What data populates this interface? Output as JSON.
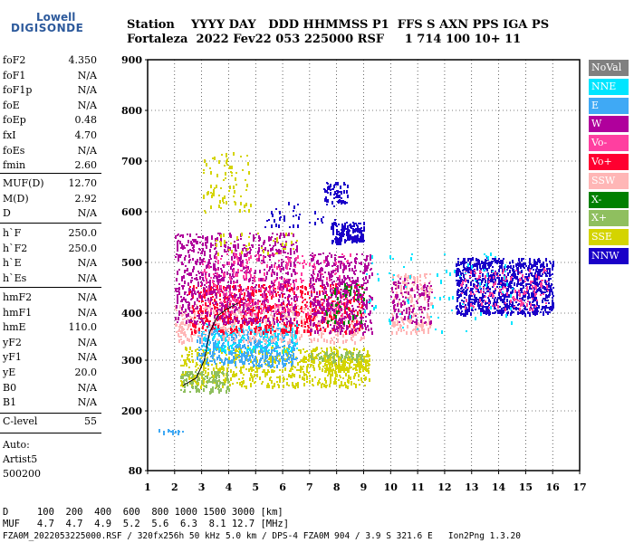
{
  "logo": {
    "top": "Lowell",
    "main": "DIGISONDE"
  },
  "header": {
    "labels": "Station    YYYY DAY   DDD HHMMSS P1  FFS S AXN PPS IGA PS",
    "values": "Fortaleza  2022 Fev22 053 225000 RSF     1 714 100 10+ 11"
  },
  "params_group1": [
    {
      "name": "foF2",
      "value": "4.350"
    },
    {
      "name": "foF1",
      "value": "N/A"
    },
    {
      "name": "foF1p",
      "value": "N/A"
    },
    {
      "name": "foE",
      "value": "N/A"
    },
    {
      "name": "foEp",
      "value": "0.48"
    },
    {
      "name": "fxI",
      "value": "4.70"
    },
    {
      "name": "foEs",
      "value": "N/A"
    },
    {
      "name": "fmin",
      "value": "2.60"
    }
  ],
  "params_group2": [
    {
      "name": "MUF(D)",
      "value": "12.70"
    },
    {
      "name": "M(D)",
      "value": "2.92"
    },
    {
      "name": "D",
      "value": "N/A"
    }
  ],
  "params_group3": [
    {
      "name": "h`F",
      "value": "250.0"
    },
    {
      "name": "h`F2",
      "value": "250.0"
    },
    {
      "name": "h`E",
      "value": "N/A"
    },
    {
      "name": "h`Es",
      "value": "N/A"
    }
  ],
  "params_group4": [
    {
      "name": "hmF2",
      "value": "N/A"
    },
    {
      "name": "hmF1",
      "value": "N/A"
    },
    {
      "name": "hmE",
      "value": "110.0"
    },
    {
      "name": "yF2",
      "value": "N/A"
    },
    {
      "name": "yF1",
      "value": "N/A"
    },
    {
      "name": "yE",
      "value": "20.0"
    },
    {
      "name": "B0",
      "value": "N/A"
    },
    {
      "name": "B1",
      "value": "N/A"
    }
  ],
  "clevel": {
    "name": "C-level",
    "value": "55"
  },
  "auto": [
    "Auto:",
    "Artist5",
    "500200"
  ],
  "footer": {
    "d_row": "D     100  200  400  600  800 1000 1500 3000 [km]",
    "muf_row": "MUF   4.7  4.7  4.9  5.2  5.6  6.3  8.1 12.7 [MHz]",
    "file_row": "FZA0M_2022053225000.RSF / 320fx256h 50 kHz 5.0 km / DPS-4 FZA0M 904 / 3.9 S 321.6 E   Ion2Png 1.3.20"
  },
  "legend": [
    {
      "label": "NoVal",
      "color": "#808080"
    },
    {
      "label": "NNE",
      "color": "#00e5ff"
    },
    {
      "label": "E",
      "color": "#3fa9f5"
    },
    {
      "label": "W",
      "color": "#b0009c"
    },
    {
      "label": "Vo-",
      "color": "#ff3fa0"
    },
    {
      "label": "Vo+",
      "color": "#ff0030"
    },
    {
      "label": "SSW",
      "color": "#ffb6b6"
    },
    {
      "label": "X-",
      "color": "#008000"
    },
    {
      "label": "X+",
      "color": "#8fbf5f"
    },
    {
      "label": "SSE",
      "color": "#d4d400"
    },
    {
      "label": "NNW",
      "color": "#1a00c8"
    }
  ],
  "chart_data": {
    "type": "scatter",
    "title": "",
    "xlabel": "",
    "ylabel": "",
    "xlim": [
      1,
      17
    ],
    "ylim": [
      80,
      900
    ],
    "x_ticks": [
      "1",
      "2",
      "3",
      "4",
      "5",
      "6",
      "7",
      "8",
      "9",
      "10",
      "11",
      "12",
      "13",
      "14",
      "15",
      "16",
      "17"
    ],
    "y_ticks": [
      "80",
      "200",
      "300",
      "400",
      "500",
      "600",
      "700",
      "800",
      "900"
    ],
    "grid": true,
    "clusters": [
      {
        "series": "SSE",
        "x_range": [
          2.2,
          9.2
        ],
        "y_range": [
          250,
          330
        ],
        "count": 700
      },
      {
        "series": "X+",
        "x_range": [
          2.2,
          4.0
        ],
        "y_range": [
          240,
          280
        ],
        "count": 120
      },
      {
        "series": "E",
        "x_range": [
          2.8,
          6.5
        ],
        "y_range": [
          290,
          370
        ],
        "count": 450
      },
      {
        "series": "NNE",
        "x_range": [
          3.0,
          6.5
        ],
        "y_range": [
          320,
          380
        ],
        "count": 150
      },
      {
        "series": "SSW",
        "x_range": [
          2.0,
          9.0
        ],
        "y_range": [
          340,
          420
        ],
        "count": 500
      },
      {
        "series": "Vo+",
        "x_range": [
          2.5,
          9.0
        ],
        "y_range": [
          360,
          460
        ],
        "count": 600
      },
      {
        "series": "W",
        "x_range": [
          2.0,
          6.5
        ],
        "y_range": [
          380,
          560
        ],
        "count": 800
      },
      {
        "series": "Vo-",
        "x_range": [
          3.0,
          8.5
        ],
        "y_range": [
          400,
          520
        ],
        "count": 300
      },
      {
        "series": "W",
        "x_range": [
          7.0,
          9.3
        ],
        "y_range": [
          360,
          520
        ],
        "count": 450
      },
      {
        "series": "NNW",
        "x_range": [
          12.4,
          16.0
        ],
        "y_range": [
          400,
          510
        ],
        "count": 900
      },
      {
        "series": "Vo-",
        "x_range": [
          12.5,
          15.8
        ],
        "y_range": [
          410,
          490
        ],
        "count": 150
      },
      {
        "series": "NNW",
        "x_range": [
          7.8,
          9.0
        ],
        "y_range": [
          540,
          580
        ],
        "count": 150
      },
      {
        "series": "NNW",
        "x_range": [
          7.5,
          8.4
        ],
        "y_range": [
          620,
          660
        ],
        "count": 60
      },
      {
        "series": "NNW",
        "x_range": [
          5.3,
          8.0
        ],
        "y_range": [
          570,
          620
        ],
        "count": 40
      },
      {
        "series": "SSE",
        "x_range": [
          3.0,
          4.8
        ],
        "y_range": [
          600,
          720
        ],
        "count": 80
      },
      {
        "series": "SSW",
        "x_range": [
          10.0,
          11.5
        ],
        "y_range": [
          360,
          480
        ],
        "count": 200
      },
      {
        "series": "W",
        "x_range": [
          10.0,
          11.5
        ],
        "y_range": [
          380,
          470
        ],
        "count": 120
      },
      {
        "series": "SSE",
        "x_range": [
          7.5,
          9.2
        ],
        "y_range": [
          280,
          310
        ],
        "count": 120
      },
      {
        "series": "X+",
        "x_range": [
          7.0,
          9.0
        ],
        "y_range": [
          300,
          320
        ],
        "count": 60
      },
      {
        "series": "E",
        "x_range": [
          1.4,
          2.3
        ],
        "y_range": [
          155,
          165
        ],
        "count": 15
      },
      {
        "series": "NNE",
        "x_range": [
          9.0,
          14.5
        ],
        "y_range": [
          360,
          520
        ],
        "count": 80
      },
      {
        "series": "X-",
        "x_range": [
          7.5,
          9.0
        ],
        "y_range": [
          380,
          460
        ],
        "count": 50
      },
      {
        "series": "SSE",
        "x_range": [
          3.5,
          6.5
        ],
        "y_range": [
          520,
          560
        ],
        "count": 40
      }
    ],
    "trace_points": [
      [
        2.3,
        250
      ],
      [
        2.8,
        265
      ],
      [
        3.1,
        300
      ],
      [
        3.3,
        360
      ],
      [
        3.6,
        395
      ],
      [
        4.0,
        410
      ],
      [
        4.35,
        420
      ]
    ]
  }
}
